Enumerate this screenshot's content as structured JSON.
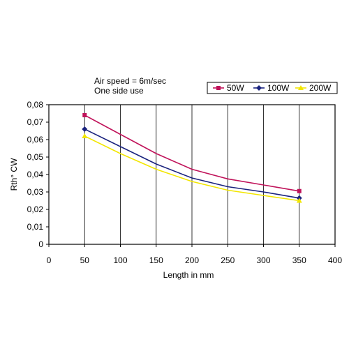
{
  "chart_data": {
    "type": "line",
    "xlabel": "Length in mm",
    "ylabel": "Rth° CW",
    "xlim": [
      0,
      400
    ],
    "ylim": [
      0,
      0.08
    ],
    "x_ticks": [
      "0",
      "50",
      "100",
      "150",
      "200",
      "250",
      "300",
      "350",
      "400"
    ],
    "y_ticks": [
      "0",
      "0,01",
      "0,02",
      "0,03",
      "0,04",
      "0,05",
      "0,06",
      "0,07",
      "0,08"
    ],
    "grid": "vertical",
    "legend_position": "top-right",
    "annotations": [
      "Air speed = 6m/sec",
      "One side use"
    ],
    "series": [
      {
        "name": "50W",
        "color": "#c0135a",
        "marker": "square",
        "points": [
          [
            50,
            0.074
          ],
          [
            100,
            0.063
          ],
          [
            150,
            0.052
          ],
          [
            200,
            0.043
          ],
          [
            250,
            0.0375
          ],
          [
            300,
            0.034
          ],
          [
            350,
            0.0305
          ]
        ]
      },
      {
        "name": "100W",
        "color": "#1a237e",
        "marker": "diamond",
        "points": [
          [
            50,
            0.066
          ],
          [
            100,
            0.056
          ],
          [
            150,
            0.046
          ],
          [
            200,
            0.038
          ],
          [
            250,
            0.033
          ],
          [
            300,
            0.03
          ],
          [
            350,
            0.0265
          ]
        ]
      },
      {
        "name": "200W",
        "color": "#f2e600",
        "marker": "triangle",
        "points": [
          [
            50,
            0.062
          ],
          [
            100,
            0.052
          ],
          [
            150,
            0.043
          ],
          [
            200,
            0.036
          ],
          [
            250,
            0.031
          ],
          [
            300,
            0.028
          ],
          [
            350,
            0.025
          ]
        ]
      }
    ]
  }
}
